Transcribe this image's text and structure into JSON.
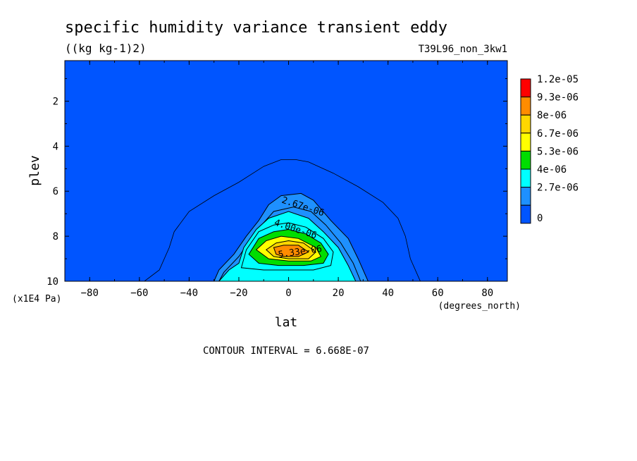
{
  "chart_data": {
    "type": "contour",
    "title": "specific humidity variance transient eddy",
    "units": "((kg kg-1)2)",
    "run_label": "T39L96_non_3kw1",
    "xlabel": "lat",
    "x_units": "(degrees_north)",
    "ylabel": "plev",
    "y_units": "(x1E4 Pa)",
    "xlim": [
      -90,
      88
    ],
    "ylim": [
      10,
      0.2
    ],
    "x_ticks": [
      -80,
      -60,
      -40,
      -20,
      0,
      20,
      40,
      60,
      80
    ],
    "y_ticks": [
      2,
      4,
      6,
      8,
      10
    ],
    "contour_interval_text": "CONTOUR INTERVAL = 6.668E-07",
    "contour_labels": [
      "2.67e-06",
      "4.00e-06",
      "5.33e-06"
    ],
    "colorbar": {
      "labels": [
        "1.2e-05",
        "9.3e-06",
        "8e-06",
        "6.7e-06",
        "5.3e-06",
        "4e-06",
        "2.7e-06",
        "0"
      ],
      "colors": [
        "#ff0000",
        "#ff8c00",
        "#ffd700",
        "#ffff00",
        "#00dd00",
        "#00ffff",
        "#1e90ff",
        "#0055ff"
      ]
    },
    "levels": [
      {
        "value": 6.668e-07,
        "fill": "#0055ff",
        "pts": [
          [
            -58,
            10
          ],
          [
            -52,
            9.5
          ],
          [
            -48,
            8.5
          ],
          [
            -46,
            7.8
          ],
          [
            -40,
            6.9
          ],
          [
            -30,
            6.2
          ],
          [
            -20,
            5.6
          ],
          [
            -10,
            4.9
          ],
          [
            -3,
            4.6
          ],
          [
            3,
            4.6
          ],
          [
            8,
            4.7
          ],
          [
            18,
            5.2
          ],
          [
            28,
            5.8
          ],
          [
            38,
            6.5
          ],
          [
            44,
            7.2
          ],
          [
            47,
            8.0
          ],
          [
            49,
            9.0
          ],
          [
            53,
            10
          ]
        ]
      },
      {
        "value": 1.3336e-06,
        "fill": "#1e90ff",
        "pts": [
          [
            -30,
            10
          ],
          [
            -28,
            9.5
          ],
          [
            -22,
            8.8
          ],
          [
            -17,
            8.0
          ],
          [
            -12,
            7.3
          ],
          [
            -8,
            6.6
          ],
          [
            -3,
            6.2
          ],
          [
            5,
            6.1
          ],
          [
            10,
            6.4
          ],
          [
            17,
            7.3
          ],
          [
            24,
            8.1
          ],
          [
            28,
            9.0
          ],
          [
            32,
            10
          ]
        ]
      },
      {
        "value": 2.0004e-06,
        "fill": "#1e90ff",
        "pts": [
          [
            -28,
            10
          ],
          [
            -26,
            9.6
          ],
          [
            -20,
            8.9
          ],
          [
            -15,
            8.1
          ],
          [
            -10,
            7.4
          ],
          [
            -6,
            6.9
          ],
          [
            2,
            6.7
          ],
          [
            9,
            6.9
          ],
          [
            15,
            7.5
          ],
          [
            21,
            8.3
          ],
          [
            26,
            9.2
          ],
          [
            29,
            10
          ]
        ]
      },
      {
        "value": 2.6672e-06,
        "fill": "#00ffff",
        "pts": [
          [
            -28,
            10
          ],
          [
            -24,
            9.5
          ],
          [
            -20,
            9.2
          ],
          [
            -18,
            8.5
          ],
          [
            -13,
            7.7
          ],
          [
            -8,
            7.2
          ],
          [
            0,
            6.9
          ],
          [
            8,
            7.2
          ],
          [
            14,
            7.8
          ],
          [
            20,
            8.5
          ],
          [
            24,
            9.3
          ],
          [
            27,
            10
          ]
        ]
      },
      {
        "value": 3.334e-06,
        "fill": "#00ffff",
        "pts": [
          [
            -19,
            9.4
          ],
          [
            -17,
            8.6
          ],
          [
            -12,
            7.8
          ],
          [
            -6,
            7.5
          ],
          [
            0,
            7.4
          ],
          [
            7,
            7.6
          ],
          [
            14,
            8.1
          ],
          [
            18,
            8.7
          ],
          [
            17,
            9.3
          ],
          [
            10,
            9.5
          ],
          [
            0,
            9.5
          ],
          [
            -10,
            9.5
          ]
        ]
      },
      {
        "value": 4.0008e-06,
        "fill": "#00dd00",
        "pts": [
          [
            -16,
            8.8
          ],
          [
            -12,
            8.1
          ],
          [
            -6,
            7.8
          ],
          [
            0,
            7.7
          ],
          [
            7,
            7.9
          ],
          [
            13,
            8.3
          ],
          [
            16,
            8.8
          ],
          [
            14,
            9.2
          ],
          [
            6,
            9.3
          ],
          [
            -4,
            9.3
          ],
          [
            -12,
            9.2
          ]
        ]
      },
      {
        "value": 4.6676e-06,
        "fill": "#ffff00",
        "pts": [
          [
            -13,
            8.6
          ],
          [
            -9,
            8.2
          ],
          [
            -3,
            8.0
          ],
          [
            4,
            8.1
          ],
          [
            11,
            8.5
          ],
          [
            13,
            8.9
          ],
          [
            9,
            9.1
          ],
          [
            0,
            9.1
          ],
          [
            -8,
            9.0
          ]
        ]
      },
      {
        "value": 5.3344e-06,
        "fill": "#ffd700",
        "pts": [
          [
            -9,
            8.6
          ],
          [
            -5,
            8.3
          ],
          [
            0,
            8.2
          ],
          [
            6,
            8.3
          ],
          [
            11,
            8.7
          ],
          [
            8,
            9.0
          ],
          [
            0,
            9.0
          ],
          [
            -6,
            8.9
          ]
        ]
      },
      {
        "value": 6.0012e-06,
        "fill": "#ff8c00",
        "pts": [
          [
            -6,
            8.5
          ],
          [
            -2,
            8.4
          ],
          [
            4,
            8.4
          ],
          [
            8,
            8.7
          ],
          [
            4,
            8.9
          ],
          [
            -2,
            8.9
          ],
          [
            -5,
            8.8
          ]
        ]
      }
    ]
  }
}
